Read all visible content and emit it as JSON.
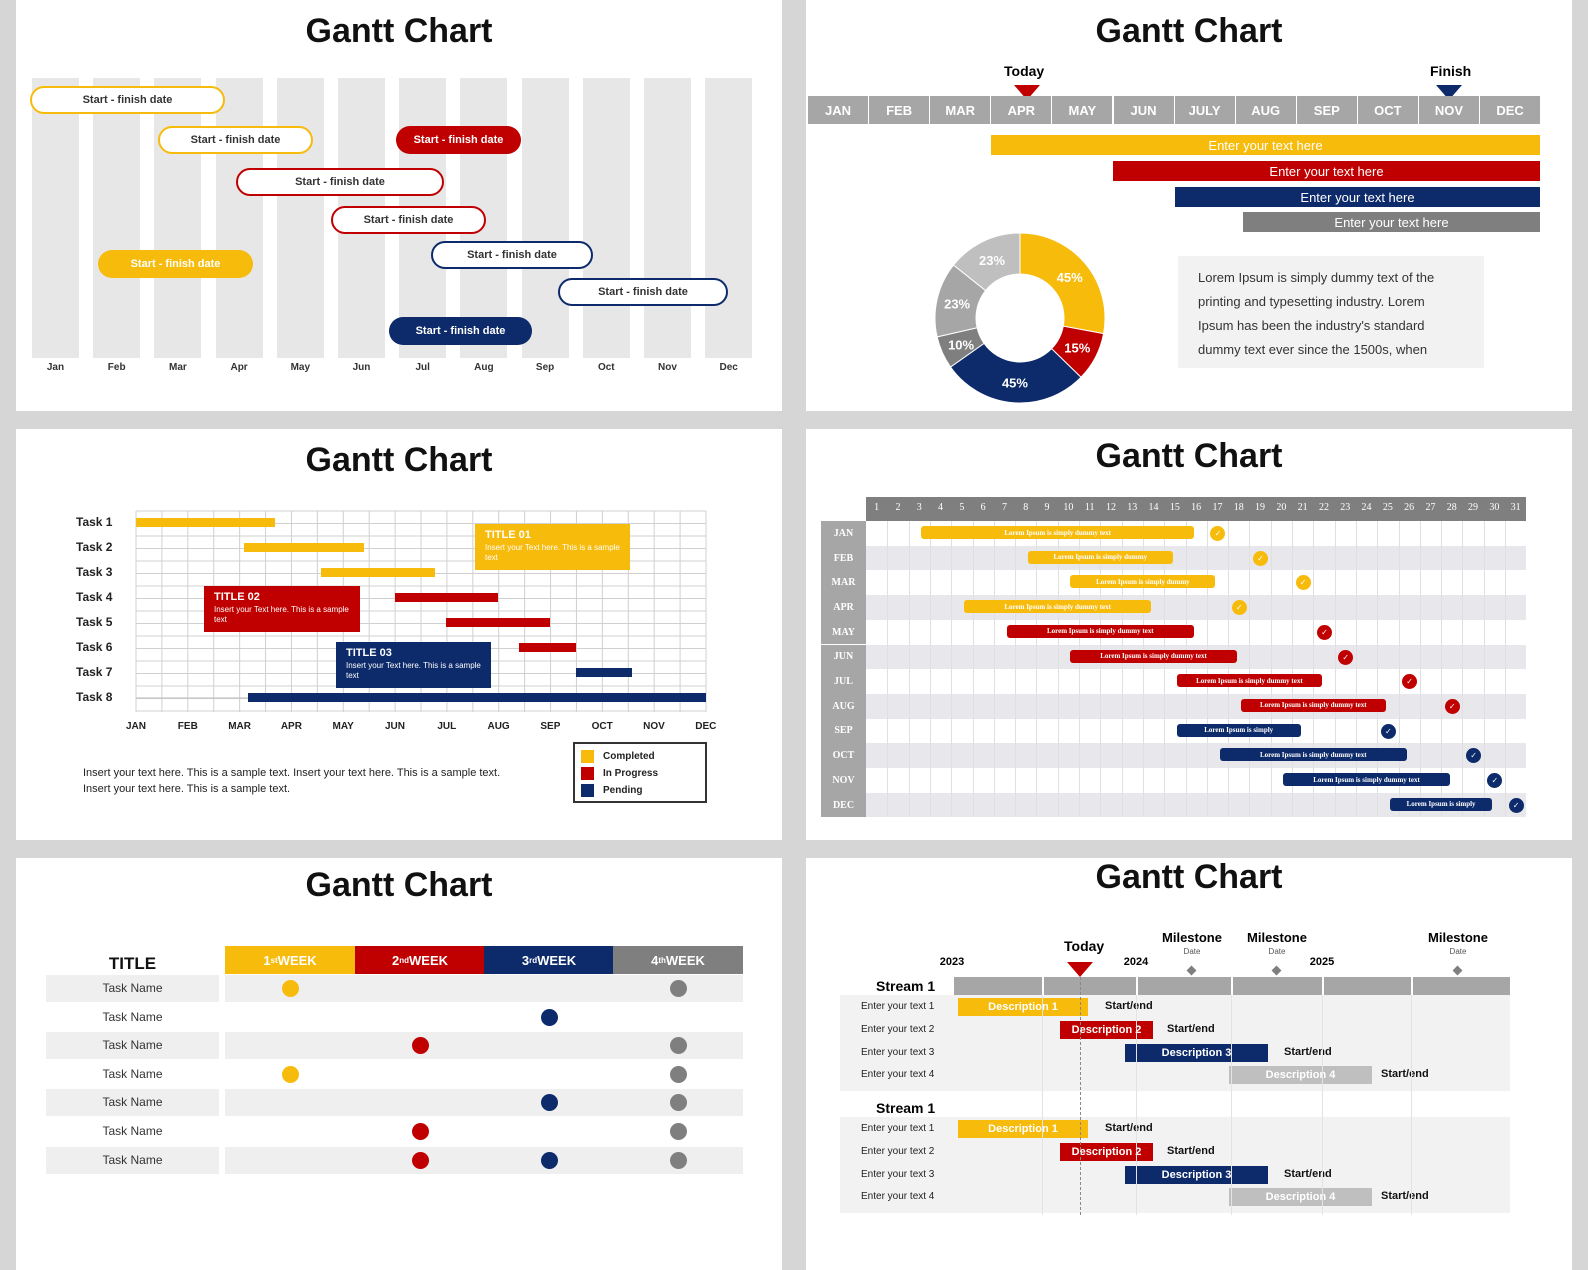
{
  "colors": {
    "yellow": "#f7bb0b",
    "red": "#c00000",
    "navy": "#0d2a6a",
    "gray": "#7f7f7f",
    "light_gray": "#e7e7e7"
  },
  "slide1": {
    "title": "Gantt Chart",
    "months": [
      "Jan",
      "Feb",
      "Mar",
      "Apr",
      "May",
      "Jun",
      "Jul",
      "Aug",
      "Sep",
      "Oct",
      "Nov",
      "Dec"
    ],
    "bars": [
      {
        "label": "Start - finish date",
        "color": "yellow",
        "style": "outline"
      },
      {
        "label": "Start - finish date",
        "color": "yellow",
        "style": "outline"
      },
      {
        "label": "Start - finish date",
        "color": "red",
        "style": "filled"
      },
      {
        "label": "Start - finish date",
        "color": "red",
        "style": "outline"
      },
      {
        "label": "Start - finish date",
        "color": "red",
        "style": "outline"
      },
      {
        "label": "Start - finish date",
        "color": "navy",
        "style": "outline"
      },
      {
        "label": "Start - finish date",
        "color": "yellow",
        "style": "filled"
      },
      {
        "label": "Start - finish date",
        "color": "navy",
        "style": "outline"
      },
      {
        "label": "Start - finish date",
        "color": "navy",
        "style": "filled"
      }
    ]
  },
  "slide2": {
    "title": "Gantt Chart",
    "today_label": "Today",
    "finish_label": "Finish",
    "months": [
      "JAN",
      "FEB",
      "MAR",
      "APR",
      "MAY",
      "JUN",
      "JULY",
      "AUG",
      "SEP",
      "OCT",
      "NOV",
      "DEC"
    ],
    "bars": [
      {
        "label": "Enter your text here",
        "color": "yellow"
      },
      {
        "label": "Enter your text here",
        "color": "red"
      },
      {
        "label": "Enter your text here",
        "color": "navy"
      },
      {
        "label": "Enter your text here",
        "color": "gray"
      }
    ],
    "donut": [
      {
        "label": "45%",
        "value": 45,
        "color": "#f7bb0b"
      },
      {
        "label": "15%",
        "value": 15,
        "color": "#c00000"
      },
      {
        "label": "45%",
        "value": 45,
        "color": "#0d2a6a"
      },
      {
        "label": "10%",
        "value": 10,
        "color": "#7f7f7f"
      },
      {
        "label": "23%",
        "value": 23,
        "color": "#a6a6a6"
      },
      {
        "label": "23%",
        "value": 23,
        "color": "#bfbfbf"
      }
    ],
    "lorem_lines": [
      "Lorem Ipsum is simply dummy text of the",
      "printing and typesetting industry. Lorem",
      "Ipsum has been the industry's standard",
      "dummy text ever since the 1500s, when"
    ]
  },
  "slide3": {
    "title": "Gantt Chart",
    "tasks": [
      "Task 1",
      "Task 2",
      "Task 3",
      "Task 4",
      "Task 5",
      "Task 6",
      "Task 7",
      "Task 8"
    ],
    "months": [
      "JAN",
      "FEB",
      "MAR",
      "APR",
      "MAY",
      "JUN",
      "JUL",
      "AUG",
      "SEP",
      "OCT",
      "NOV",
      "DEC"
    ],
    "boxes": [
      {
        "title": "TITLE 01",
        "text": "Insert your Text here. This is a sample text",
        "color": "yellow"
      },
      {
        "title": "TITLE 02",
        "text": "Insert your Text here. This is a sample text",
        "color": "red"
      },
      {
        "title": "TITLE 03",
        "text": "Insert your Text here. This is a sample text",
        "color": "navy"
      }
    ],
    "legend": [
      {
        "label": "Completed",
        "color": "yellow"
      },
      {
        "label": "In Progress",
        "color": "red"
      },
      {
        "label": "Pending",
        "color": "navy"
      }
    ],
    "note_lines": [
      "Insert your text here. This is a sample text. Insert your text here. This is a sample text.",
      "Insert your text here. This is a sample text."
    ]
  },
  "slide4": {
    "title": "Gantt Chart",
    "days": [
      "1",
      "2",
      "3",
      "4",
      "5",
      "6",
      "7",
      "8",
      "9",
      "10",
      "11",
      "12",
      "13",
      "14",
      "15",
      "16",
      "17",
      "18",
      "19",
      "20",
      "21",
      "22",
      "23",
      "24",
      "25",
      "26",
      "27",
      "28",
      "29",
      "30",
      "31"
    ],
    "rows": [
      {
        "month": "JAN",
        "label": "Lorem Ipsum is simply dummy text",
        "color": "yellow"
      },
      {
        "month": "FEB",
        "label": "Lorem Ipsum is simply dummy",
        "color": "yellow"
      },
      {
        "month": "MAR",
        "label": "Lorem Ipsum is simply dummy",
        "color": "yellow"
      },
      {
        "month": "APR",
        "label": "Lorem Ipsum is simply dummy text",
        "color": "yellow"
      },
      {
        "month": "MAY",
        "label": "Lorem Ipsum is simply dummy text",
        "color": "red"
      },
      {
        "month": "JUN",
        "label": "Lorem Ipsum is simply dummy text",
        "color": "red"
      },
      {
        "month": "JUL",
        "label": "Lorem Ipsum is simply dummy text",
        "color": "red"
      },
      {
        "month": "AUG",
        "label": "Lorem Ipsum is simply dummy text",
        "color": "red"
      },
      {
        "month": "SEP",
        "label": "Lorem Ipsum is simply",
        "color": "navy"
      },
      {
        "month": "OCT",
        "label": "Lorem Ipsum is simply dummy text",
        "color": "navy"
      },
      {
        "month": "NOV",
        "label": "Lorem Ipsum is simply dummy text",
        "color": "navy"
      },
      {
        "month": "DEC",
        "label": "Lorem Ipsum is simply",
        "color": "navy"
      }
    ]
  },
  "slide5": {
    "title": "Gantt Chart",
    "header": "TITLE",
    "weeks": [
      {
        "num": "1",
        "sup": "st",
        "word": " WEEK",
        "color": "yellow"
      },
      {
        "num": "2",
        "sup": "nd",
        "word": " WEEK",
        "color": "red"
      },
      {
        "num": "3",
        "sup": "rd",
        "word": " WEEK",
        "color": "navy"
      },
      {
        "num": "4",
        "sup": "th",
        "word": " WEEK",
        "color": "gray"
      }
    ],
    "tasks": [
      "Task Name",
      "Task Name",
      "Task Name",
      "Task Name",
      "Task Name",
      "Task Name",
      "Task Name"
    ]
  },
  "slide6": {
    "title": "Gantt Chart",
    "today_label": "Today",
    "years": [
      "2023",
      "2024",
      "2025"
    ],
    "milestones": [
      {
        "label": "Milestone",
        "date": "Date"
      },
      {
        "label": "Milestone",
        "date": "Date"
      },
      {
        "label": "Milestone",
        "date": "Date"
      }
    ],
    "streams": [
      {
        "name": "Stream 1",
        "items": [
          {
            "text": "Enter your text 1",
            "desc": "Description 1",
            "end": "Start/end",
            "color": "yellow"
          },
          {
            "text": "Enter your text 2",
            "desc": "Description 2",
            "end": "Start/end",
            "color": "red"
          },
          {
            "text": "Enter your text 3",
            "desc": "Description 3",
            "end": "Start/end",
            "color": "navy"
          },
          {
            "text": "Enter your text 4",
            "desc": "Description 4",
            "end": "Start/end",
            "color": "silver"
          }
        ]
      },
      {
        "name": "Stream 1",
        "items": [
          {
            "text": "Enter your text 1",
            "desc": "Description 1",
            "end": "Start/end",
            "color": "yellow"
          },
          {
            "text": "Enter your text 2",
            "desc": "Description 2",
            "end": "Start/end",
            "color": "red"
          },
          {
            "text": "Enter your text 3",
            "desc": "Description 3",
            "end": "Start/end",
            "color": "navy"
          },
          {
            "text": "Enter your text 4",
            "desc": "Description 4",
            "end": "Start/end",
            "color": "silver"
          }
        ]
      }
    ]
  }
}
